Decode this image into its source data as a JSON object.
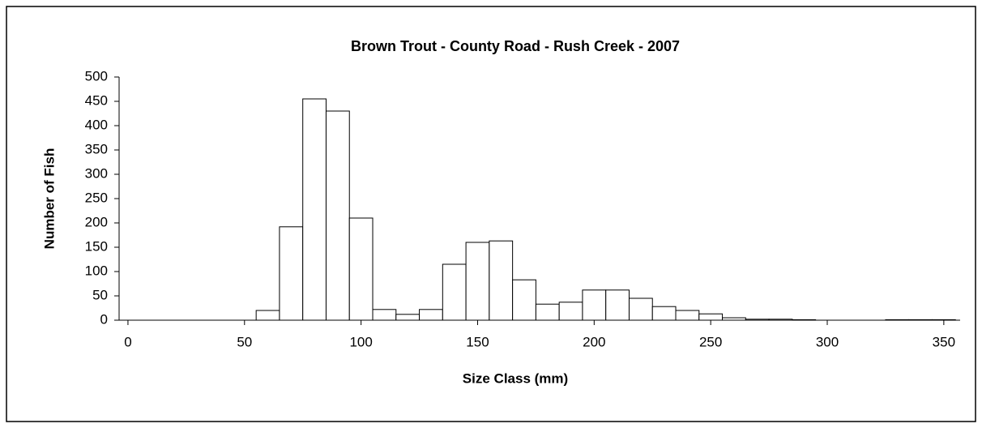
{
  "chart_data": {
    "type": "histogram",
    "title": "Brown Trout - County Road - Rush Creek - 2007",
    "x_label": "Size Class (mm)",
    "y_label": "Number of Fish",
    "bins": [
      55,
      65,
      75,
      85,
      95,
      105,
      115,
      125,
      135,
      145,
      155,
      165,
      175,
      185,
      195,
      205,
      215,
      225,
      235,
      245,
      255,
      265,
      275,
      285,
      295,
      305,
      315,
      325,
      335,
      345,
      355
    ],
    "values": [
      20,
      192,
      455,
      430,
      210,
      22,
      12,
      22,
      115,
      160,
      163,
      83,
      33,
      37,
      62,
      62,
      45,
      28,
      20,
      13,
      5,
      2,
      2,
      1,
      0,
      0,
      0,
      1,
      1,
      1
    ],
    "color": "#ffffff",
    "xlim": [
      -3.8,
      357
    ],
    "xticks": [
      0,
      50,
      100,
      150,
      200,
      250,
      300,
      350
    ],
    "ylim": [
      0,
      500
    ],
    "yticks": [
      0,
      50,
      100,
      150,
      200,
      250,
      300,
      350,
      400,
      450,
      500
    ]
  }
}
